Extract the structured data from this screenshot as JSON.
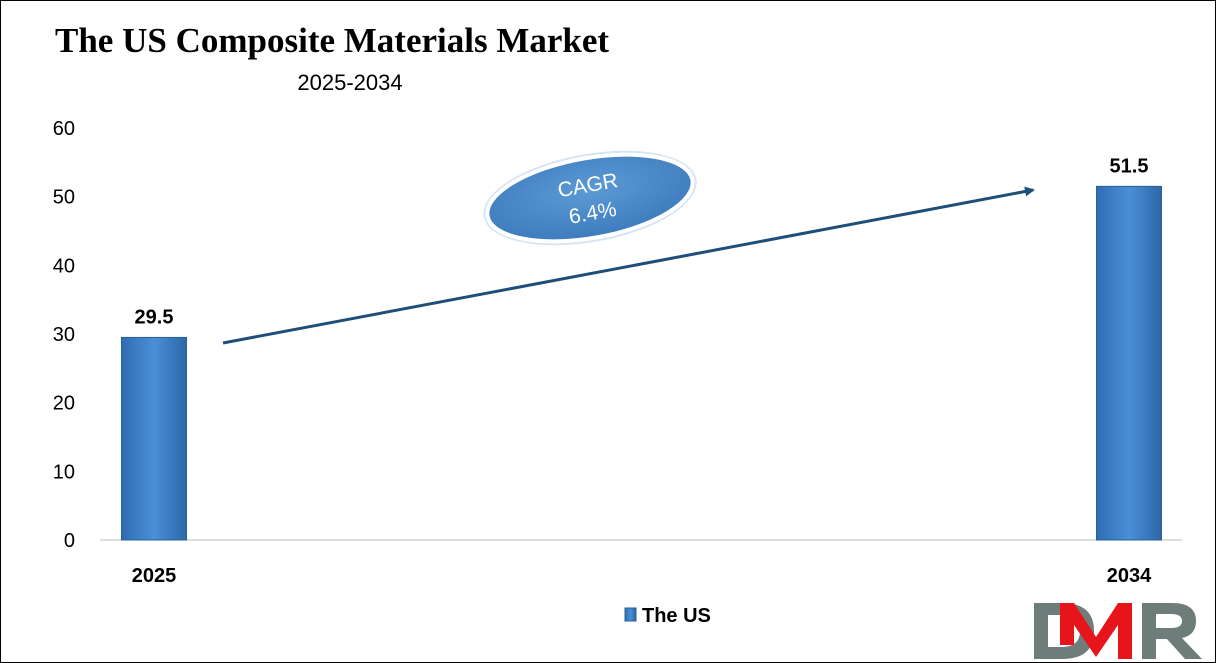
{
  "chart_data": {
    "type": "bar",
    "title": "The US Composite Materials Market",
    "subtitle": "2025-2034",
    "categories": [
      "2025",
      "2034"
    ],
    "series": [
      {
        "name": "The US",
        "values": [
          29.5,
          51.5
        ]
      }
    ],
    "data_labels": [
      "29.5",
      "51.5"
    ],
    "ylim": [
      0,
      60
    ],
    "yticks": [
      "0",
      "10",
      "20",
      "30",
      "40",
      "50",
      "60"
    ],
    "grid": false,
    "legend": "bottom",
    "annotation": {
      "line1": "CAGR",
      "line2": "6.4%"
    },
    "colors": {
      "bar": "#3a7cc4",
      "bar_edge": "#2a5f99",
      "arrow": "#1f4e79",
      "ellipse": "#4f8fd0"
    }
  },
  "logo": {
    "text": "DMR",
    "colors": {
      "gray": "#6f7d7a",
      "red": "#e8141b"
    }
  }
}
